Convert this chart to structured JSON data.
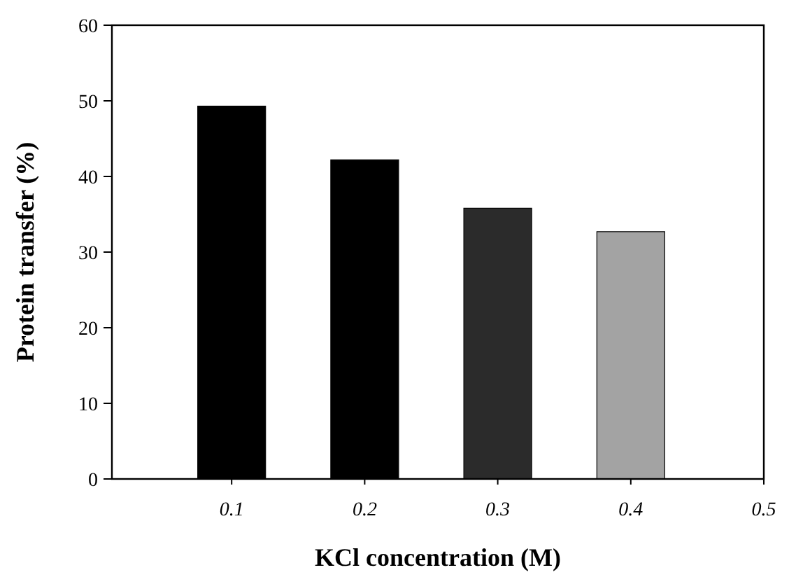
{
  "chart_data": {
    "type": "bar",
    "xlabel": "KCl concentration (M)",
    "ylabel": "Protein transfer (%)",
    "x": [
      0.1,
      0.2,
      0.3,
      0.4
    ],
    "values": [
      49.3,
      42.2,
      35.8,
      32.7
    ],
    "colors": [
      "#000000",
      "#000000",
      "#2b2b2b",
      "#a3a3a3"
    ],
    "xlim": [
      0.01,
      0.5
    ],
    "xticks": [
      0.1,
      0.2,
      0.3,
      0.4,
      0.5
    ],
    "ylim": [
      0,
      60
    ],
    "yticks": [
      0,
      10,
      20,
      30,
      40,
      50,
      60
    ],
    "grid": false
  }
}
